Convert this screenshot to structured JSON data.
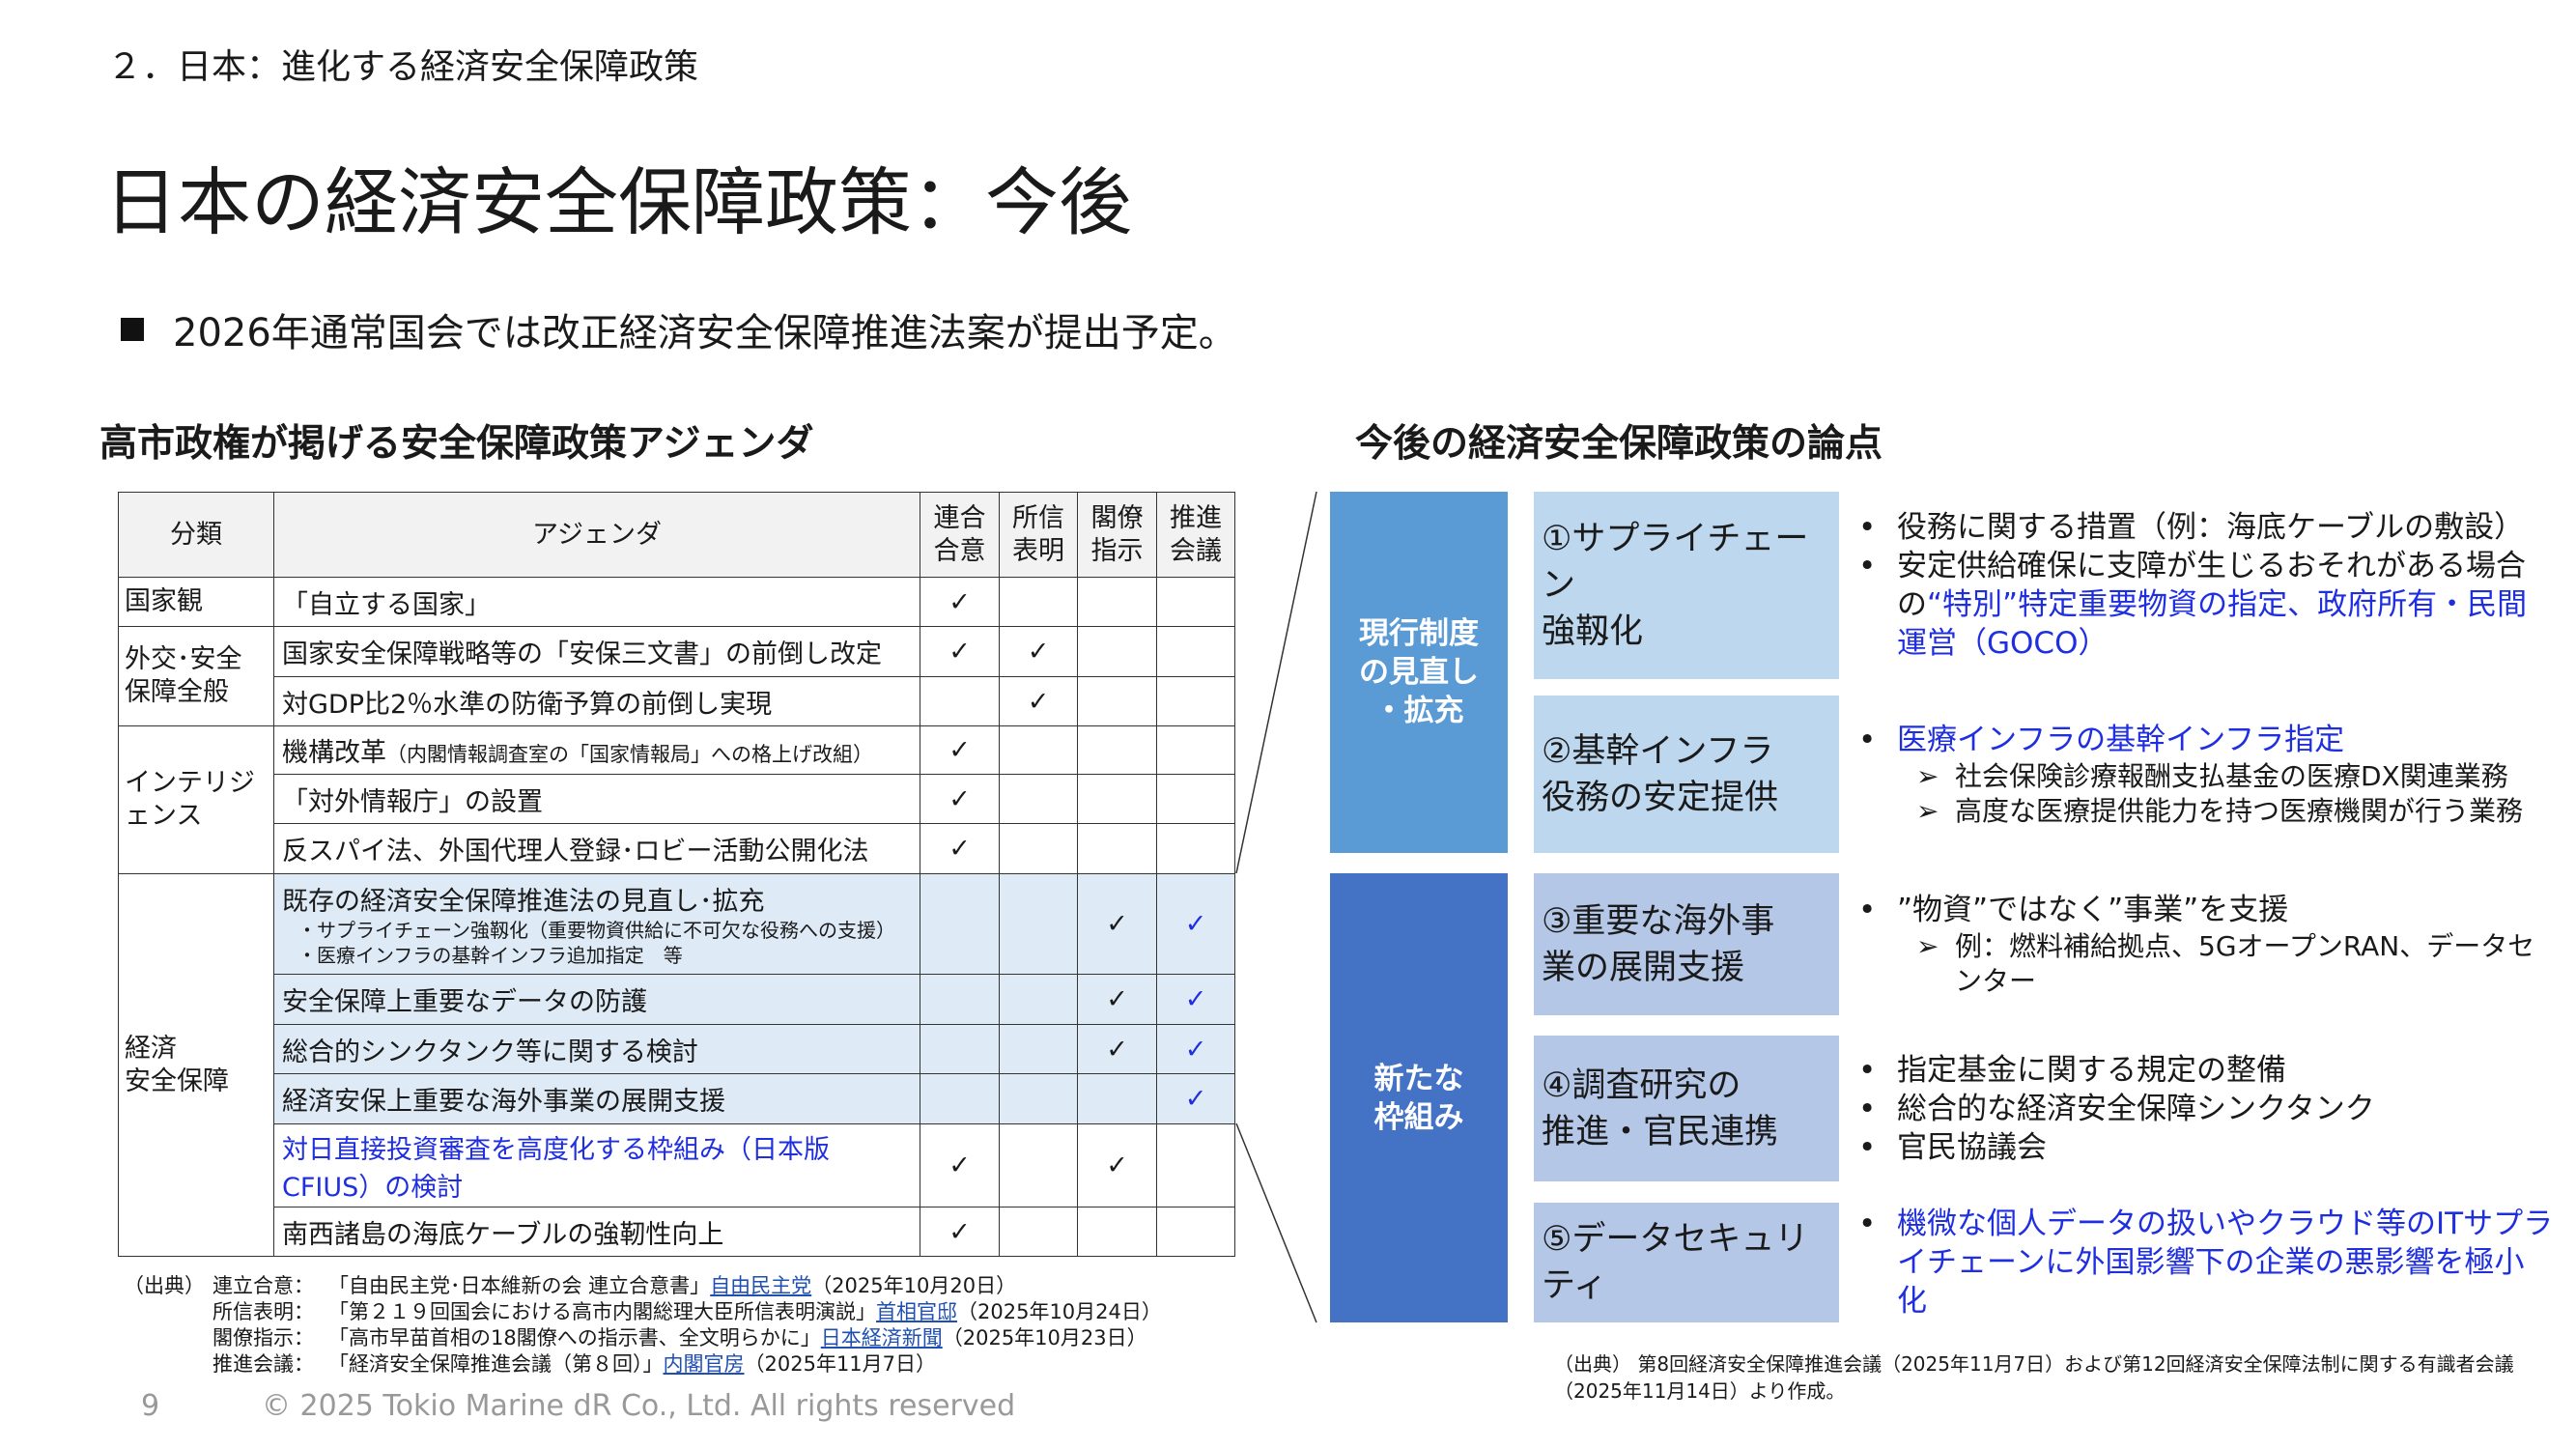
{
  "header": {
    "section": "２．日本：進化する経済安全保障政策",
    "title": "日本の経済安全保障政策：今後",
    "bullet": "2026年通常国会では改正経済安全保障推進法案が提出予定。"
  },
  "left": {
    "heading": "高市政権が掲げる安全保障政策アジェンダ",
    "columns": [
      "分類",
      "アジェンダ",
      "連合\n合意",
      "所信\n表明",
      "閣僚\n指示",
      "推進\n会議"
    ],
    "categories": {
      "c1": "国家観",
      "c2": "外交･安全保障全般",
      "c3": "インテリジェンス",
      "c4": "経済\n安全保障"
    },
    "rows": [
      {
        "text": "「自立する国家」",
        "checks": [
          "✓",
          "",
          "",
          ""
        ]
      },
      {
        "text": "国家安全保障戦略等の「安保三文書」の前倒し改定",
        "checks": [
          "✓",
          "✓",
          "",
          ""
        ]
      },
      {
        "text": "対GDP比2％水準の防衛予算の前倒し実現",
        "checks": [
          "",
          "✓",
          "",
          ""
        ]
      },
      {
        "text": "機構改革",
        "note": "（内閣情報調査室の「国家情報局」への格上げ改組）",
        "checks": [
          "✓",
          "",
          "",
          ""
        ]
      },
      {
        "text": "「対外情報庁」の設置",
        "checks": [
          "✓",
          "",
          "",
          ""
        ]
      },
      {
        "text": "反スパイ法、外国代理人登録･ロビー活動公開化法",
        "checks": [
          "✓",
          "",
          "",
          ""
        ]
      },
      {
        "text": "既存の経済安全保障推進法の見直し･拡充",
        "subs": [
          "・サプライチェーン強靱化（重要物資供給に不可欠な役務への支援）",
          "・医療インフラの基幹インフラ追加指定　等"
        ],
        "checks": [
          "",
          "",
          "✓",
          "✓"
        ]
      },
      {
        "text": "安全保障上重要なデータの防護",
        "checks": [
          "",
          "",
          "✓",
          "✓"
        ]
      },
      {
        "text": "総合的シンクタンク等に関する検討",
        "checks": [
          "",
          "",
          "✓",
          "✓"
        ]
      },
      {
        "text": "経済安保上重要な海外事業の展開支援",
        "checks": [
          "",
          "",
          "",
          "✓"
        ]
      },
      {
        "text": "対日直接投資審査を高度化する枠組み（日本版CFIUS）の検討",
        "checks": [
          "✓",
          "",
          "✓",
          ""
        ]
      },
      {
        "text": "南西諸島の海底ケーブルの強靭性向上",
        "checks": [
          "✓",
          "",
          "",
          ""
        ]
      }
    ],
    "sources_label": "（出典）",
    "sources": [
      {
        "key": "連立合意：",
        "text": "「自由民主党･日本維新の会 連立合意書」",
        "link": "自由民主党",
        "date": "（2025年10月20日）"
      },
      {
        "key": "所信表明：",
        "text": "「第２１９回国会における高市内閣総理大臣所信表明演説」",
        "link": "首相官邸",
        "date": "（2025年10月24日）"
      },
      {
        "key": "閣僚指示：",
        "text": "「高市早苗首相の18閣僚への指示書、全文明らかに」",
        "link": "日本経済新聞",
        "date": "（2025年10月23日）"
      },
      {
        "key": "推進会議：",
        "text": "「経済安全保障推進会議（第８回）」",
        "link": "内閣官房",
        "date": "（2025年11月7日）"
      }
    ]
  },
  "right": {
    "heading": "今後の経済安全保障政策の論点",
    "groups": [
      "現行制度\nの見直し\n・拡充",
      "新たな\n枠組み"
    ],
    "items": [
      {
        "title": "①サプライチェーン\n強靱化",
        "lines": [
          {
            "t": "役務に関する措置（例：海底ケーブルの敷設）"
          },
          {
            "t": "安定供給確保に支障が生じるおそれがある場合の",
            "blue": "“特別”特定重要物資の指定、政府所有・民間運営（GOCO）"
          }
        ]
      },
      {
        "title": "②基幹インフラ\n役務の安定提供",
        "lines": [
          {
            "blue": "医療インフラの基幹インフラ指定"
          }
        ],
        "subs": [
          "社会保険診療報酬支払基金の医療DX関連業務",
          "高度な医療提供能力を持つ医療機関が行う業務"
        ]
      },
      {
        "title": "③重要な海外事\n業の展開支援",
        "lines": [
          {
            "t": "”物資”ではなく”事業”を支援"
          }
        ],
        "subs": [
          "例：燃料補給拠点、5GオープンRAN、データセンター"
        ]
      },
      {
        "title": "④調査研究の\n推進・官民連携",
        "lines": [
          {
            "t": "指定基金に関する規定の整備"
          },
          {
            "t": "総合的な経済安全保障シンクタンク"
          },
          {
            "t": "官民協議会"
          }
        ]
      },
      {
        "title": "⑤データセキュリティ",
        "lines": [
          {
            "blue": "機微な個人データの扱いやクラウド等のITサプライチェーンに外国影響下の企業の悪影響を極小化"
          }
        ]
      }
    ],
    "source": "（出典） 第8回経済安全保障推進会議（2025年11月7日）および第12回経済安全保障法制に関する有識者会議（2025年11月14日）より作成。"
  },
  "footer": {
    "page": "9",
    "copyright": "© 2025 Tokio Marine dR Co., Ltd. All rights reserved"
  },
  "colors": {
    "group1": "#5b9bd5",
    "group2": "#4472c4",
    "box1": "#bdd7ee",
    "box2": "#b4c7e7",
    "highlight": "#1f2fe0",
    "row_shade": "#deeaf6"
  }
}
